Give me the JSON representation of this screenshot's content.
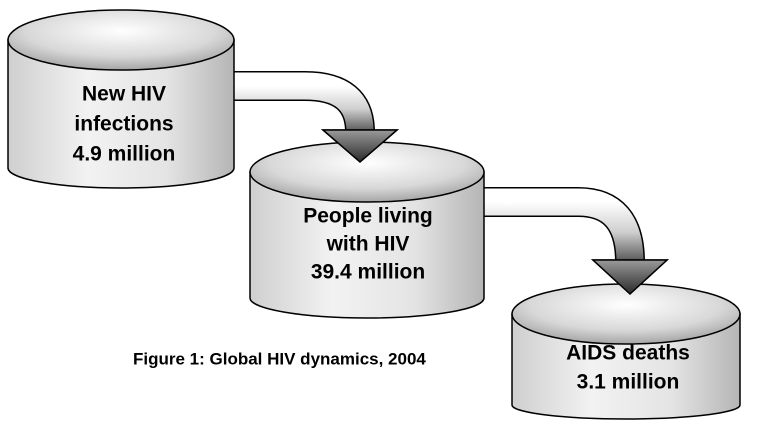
{
  "nodes": [
    {
      "lines": [
        "New HIV",
        "infections",
        "4.9 million"
      ]
    },
    {
      "lines": [
        "People living",
        "with HIV",
        "39.4 million"
      ]
    },
    {
      "lines": [
        "AIDS deaths",
        "3.1 million"
      ]
    }
  ],
  "caption": "Figure 1: Global HIV dynamics, 2004"
}
